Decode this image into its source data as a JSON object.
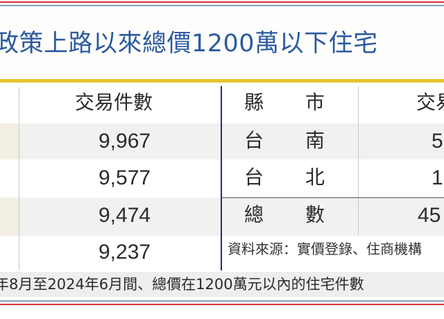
{
  "title": "政策上路以來總價1200萬以下住宅",
  "left_table": {
    "header": "交易件數",
    "rows": [
      {
        "count": "9,967"
      },
      {
        "count": "9,577"
      },
      {
        "count": "9,474"
      },
      {
        "count": "9,237"
      }
    ]
  },
  "right_table": {
    "header_county_a": "縣",
    "header_county_b": "市",
    "header_count": "交易",
    "rows": [
      {
        "county_a": "台",
        "county_b": "南",
        "count": "5"
      },
      {
        "county_a": "台",
        "county_b": "北",
        "count": "1"
      },
      {
        "county_a": "總",
        "county_b": "數",
        "count": "45"
      }
    ],
    "source": "資料來源：實價登錄、住商機構"
  },
  "footnote": "年8月至2024年6月間、總價在1200萬元以內的住宅件數",
  "colors": {
    "title": "#2c5aa0",
    "accent_yellow": "#e6c52e",
    "accent_red": "#d0343a",
    "divider_blue": "#2c2a78",
    "row_alt": "#f1f1ef"
  }
}
